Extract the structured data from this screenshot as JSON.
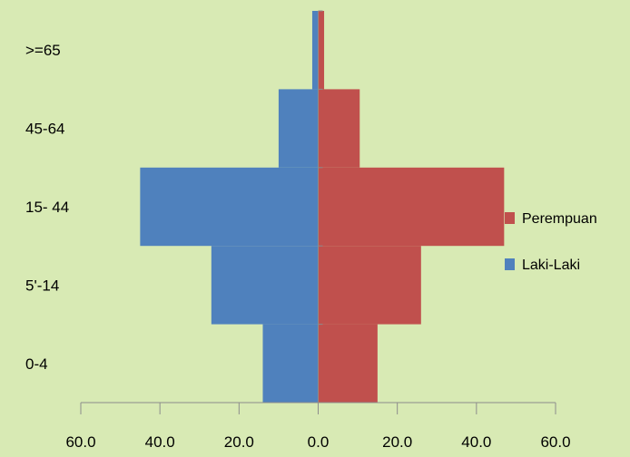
{
  "chart_data": {
    "type": "bar",
    "orientation": "horizontal",
    "layout": "population-pyramid",
    "categories": [
      "0-4",
      "5'-14",
      "15- 44",
      "45-64",
      ">=65"
    ],
    "series": [
      {
        "name": "Laki-Laki",
        "values": [
          -14,
          -27,
          -45,
          -10,
          -1.5
        ]
      },
      {
        "name": "Perempuan",
        "values": [
          15,
          26,
          47,
          10.5,
          1.5
        ]
      }
    ],
    "xlim": [
      -60,
      60
    ],
    "xticks": [
      -60,
      -40,
      -20,
      0,
      20,
      40,
      60
    ],
    "xtick_labels": [
      "60.0",
      "40.0",
      "20.0",
      "0.0",
      "20.0",
      "40.0",
      "60.0"
    ],
    "title": "",
    "xlabel": "",
    "ylabel": "",
    "grid": false,
    "legend_position": "right",
    "legend": [
      {
        "label": "Perempuan",
        "color": "#c0504d"
      },
      {
        "label": "Laki-Laki",
        "color": "#4f81bd"
      }
    ],
    "colors": {
      "Laki-Laki": "#4f81bd",
      "Perempuan": "#c0504d"
    },
    "background": "#d8eab4"
  }
}
